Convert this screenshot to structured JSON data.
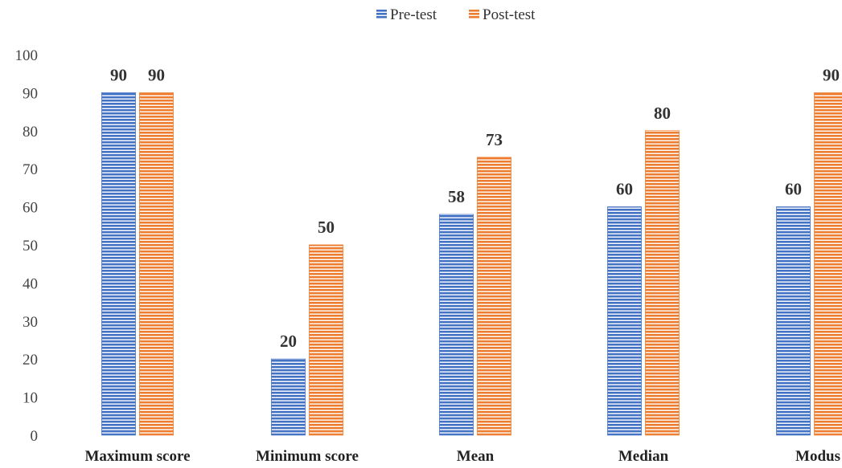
{
  "chart_data": {
    "type": "bar",
    "title": "",
    "xlabel": "",
    "ylabel": "",
    "categories": [
      "Maximum score",
      "Minimum score",
      "Mean",
      "Median",
      "Modus"
    ],
    "series": [
      {
        "name": "Pre-test",
        "values": [
          90,
          20,
          58,
          60,
          60
        ],
        "color": "#4472C4"
      },
      {
        "name": "Post-test",
        "values": [
          90,
          50,
          73,
          80,
          90
        ],
        "color": "#ED7D31"
      }
    ],
    "ylim": [
      0,
      100
    ],
    "yticks": [
      0,
      10,
      20,
      30,
      40,
      50,
      60,
      70,
      80,
      90,
      100
    ],
    "grid": false,
    "legend_position": "top-center",
    "bar_pattern": "horizontal-stripes"
  }
}
